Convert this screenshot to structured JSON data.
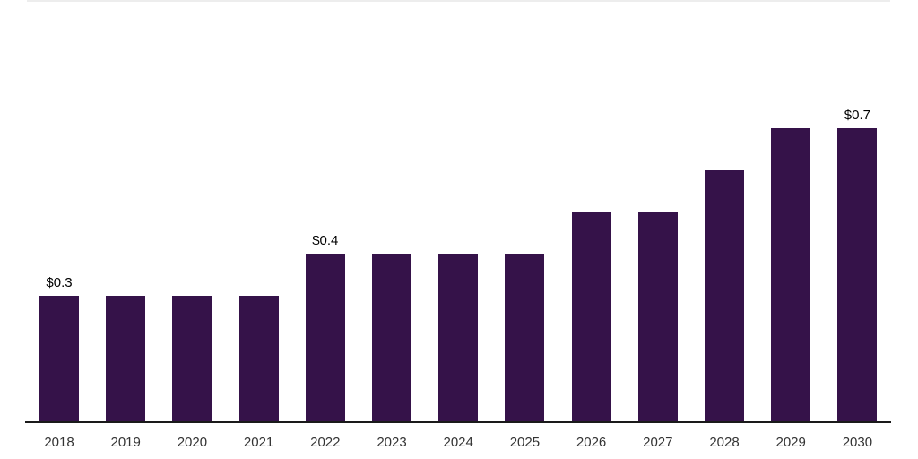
{
  "chart_data": {
    "type": "bar",
    "title": "",
    "xlabel": "",
    "ylabel": "",
    "categories": [
      "2018",
      "2019",
      "2020",
      "2021",
      "2022",
      "2023",
      "2024",
      "2025",
      "2026",
      "2027",
      "2028",
      "2029",
      "2030"
    ],
    "values": [
      0.3,
      0.3,
      0.3,
      0.3,
      0.4,
      0.4,
      0.4,
      0.4,
      0.5,
      0.5,
      0.6,
      0.7,
      0.7
    ],
    "value_labels": [
      "$0.3",
      "",
      "",
      "",
      "$0.4",
      "",
      "",
      "",
      "",
      "",
      "",
      "",
      "$0.7"
    ],
    "ylim": [
      0,
      0.9
    ],
    "grid": false,
    "legend": "none",
    "colors": {
      "bar": "#351249",
      "axis": "#1a1a1a",
      "value_label": "#000000",
      "tick_label": "#333333",
      "top_rule": "#ededed"
    }
  }
}
